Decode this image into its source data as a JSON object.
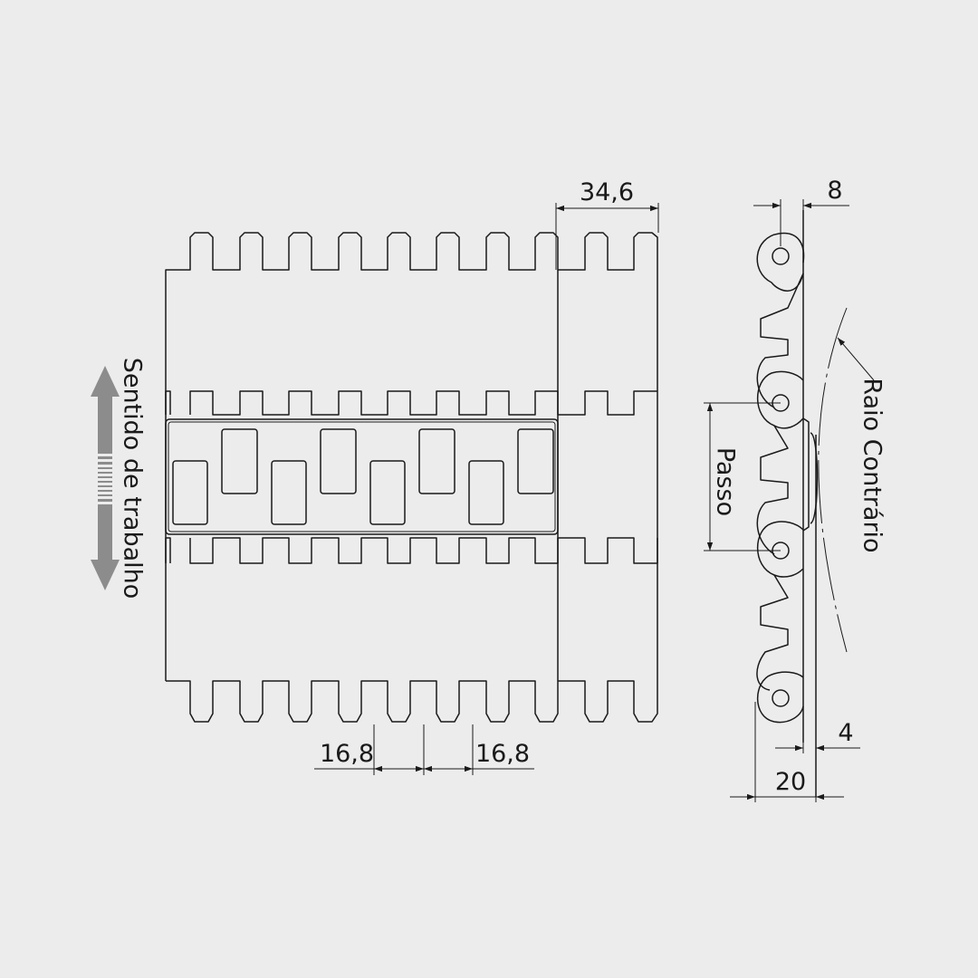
{
  "direction_label": "Sentido de trabalho",
  "dimensions": {
    "module_width": "34,6",
    "pitch_left": "16,8",
    "pitch_right": "16,8",
    "side_top": "8",
    "side_bottom_small": "4",
    "side_total": "20"
  },
  "labels": {
    "pitch": "Passo",
    "reverse_radius": "Raio Contrário"
  },
  "colors": {
    "background": "#ececec",
    "line": "#1a1a1a",
    "arrow": "#8c8c8c"
  }
}
